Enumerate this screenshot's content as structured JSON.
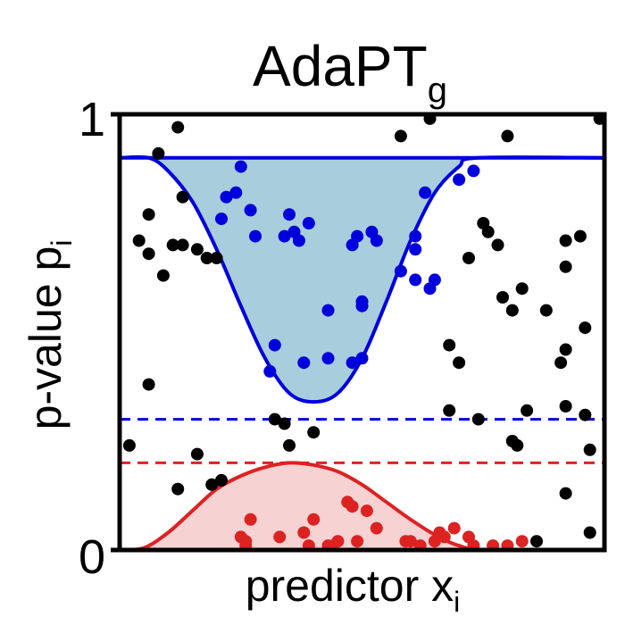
{
  "chart_data": {
    "type": "scatter",
    "title": "AdaPT",
    "title_subscript": "g",
    "xlabel": "predictor x",
    "xlabel_subscript": "i",
    "ylabel": "p-value p",
    "ylabel_subscript": "i",
    "y_ticks": [
      "0",
      "1"
    ],
    "xlim": [
      0,
      1
    ],
    "ylim": [
      0,
      1
    ],
    "grid": false,
    "colors": {
      "null_region_line": "#0000dd",
      "null_region_fill": "#a8cddc",
      "rejection_region_line": "#dd2222",
      "rejection_region_fill": "#f6d2d2",
      "points_other": "#000000"
    },
    "upper_threshold": 0.9,
    "blue_dashed_threshold": 0.3,
    "red_dashed_threshold": 0.2,
    "null_region_curve": [
      [
        0.0,
        0.9
      ],
      [
        0.06,
        0.9
      ],
      [
        0.1,
        0.87
      ],
      [
        0.15,
        0.8
      ],
      [
        0.2,
        0.69
      ],
      [
        0.25,
        0.56
      ],
      [
        0.3,
        0.44
      ],
      [
        0.35,
        0.36
      ],
      [
        0.4,
        0.34
      ],
      [
        0.45,
        0.36
      ],
      [
        0.5,
        0.44
      ],
      [
        0.55,
        0.57
      ],
      [
        0.6,
        0.71
      ],
      [
        0.65,
        0.82
      ],
      [
        0.7,
        0.88
      ],
      [
        0.74,
        0.9
      ],
      [
        1.0,
        0.9
      ]
    ],
    "rejection_region_curve": [
      [
        0.0,
        0.0
      ],
      [
        0.05,
        0.005
      ],
      [
        0.1,
        0.04
      ],
      [
        0.15,
        0.09
      ],
      [
        0.2,
        0.14
      ],
      [
        0.25,
        0.17
      ],
      [
        0.3,
        0.19
      ],
      [
        0.35,
        0.2
      ],
      [
        0.4,
        0.195
      ],
      [
        0.45,
        0.18
      ],
      [
        0.5,
        0.15
      ],
      [
        0.55,
        0.11
      ],
      [
        0.6,
        0.07
      ],
      [
        0.65,
        0.035
      ],
      [
        0.7,
        0.01
      ],
      [
        0.76,
        0.0
      ],
      [
        1.0,
        0.0
      ]
    ],
    "series": [
      {
        "color": "#0000dd",
        "points": [
          [
            0.25,
            0.88
          ],
          [
            0.24,
            0.82
          ],
          [
            0.22,
            0.81
          ],
          [
            0.21,
            0.76
          ],
          [
            0.27,
            0.78
          ],
          [
            0.35,
            0.77
          ],
          [
            0.36,
            0.73
          ],
          [
            0.39,
            0.75
          ],
          [
            0.37,
            0.71
          ],
          [
            0.28,
            0.72
          ],
          [
            0.34,
            0.72
          ],
          [
            0.49,
            0.72
          ],
          [
            0.52,
            0.73
          ],
          [
            0.48,
            0.7
          ],
          [
            0.53,
            0.71
          ],
          [
            0.61,
            0.72
          ],
          [
            0.61,
            0.69
          ],
          [
            0.58,
            0.64
          ],
          [
            0.61,
            0.62
          ],
          [
            0.65,
            0.62
          ],
          [
            0.64,
            0.6
          ],
          [
            0.7,
            0.85
          ],
          [
            0.73,
            0.87
          ],
          [
            0.63,
            0.82
          ],
          [
            0.32,
            0.47
          ],
          [
            0.43,
            0.55
          ],
          [
            0.5,
            0.56
          ],
          [
            0.5,
            0.57
          ],
          [
            0.43,
            0.44
          ],
          [
            0.48,
            0.43
          ],
          [
            0.5,
            0.44
          ],
          [
            0.31,
            0.41
          ],
          [
            0.38,
            0.43
          ]
        ]
      },
      {
        "color": "#dd2222",
        "points": [
          [
            0.25,
            0.03
          ],
          [
            0.26,
            0.01
          ],
          [
            0.27,
            0.07
          ],
          [
            0.26,
            0.02
          ],
          [
            0.33,
            0.03
          ],
          [
            0.38,
            0.04
          ],
          [
            0.4,
            0.07
          ],
          [
            0.44,
            0.01
          ],
          [
            0.45,
            0.02
          ],
          [
            0.47,
            0.11
          ],
          [
            0.48,
            0.1
          ],
          [
            0.51,
            0.09
          ],
          [
            0.53,
            0.05
          ],
          [
            0.59,
            0.02
          ],
          [
            0.6,
            0.02
          ],
          [
            0.65,
            0.02
          ],
          [
            0.66,
            0.04
          ],
          [
            0.67,
            0.03
          ],
          [
            0.69,
            0.05
          ],
          [
            0.72,
            0.03
          ],
          [
            0.73,
            0.01
          ],
          [
            0.39,
            0.01
          ],
          [
            0.43,
            0.01
          ],
          [
            0.49,
            0.02
          ],
          [
            0.62,
            0.01
          ],
          [
            0.77,
            0.01
          ],
          [
            0.8,
            0.01
          ],
          [
            0.83,
            0.02
          ]
        ]
      },
      {
        "color": "#000000",
        "points": [
          [
            0.12,
            0.97
          ],
          [
            0.08,
            0.91
          ],
          [
            0.13,
            0.81
          ],
          [
            0.06,
            0.77
          ],
          [
            0.04,
            0.71
          ],
          [
            0.09,
            0.63
          ],
          [
            0.11,
            0.7
          ],
          [
            0.13,
            0.7
          ],
          [
            0.16,
            0.69
          ],
          [
            0.18,
            0.67
          ],
          [
            0.2,
            0.67
          ],
          [
            0.06,
            0.68
          ],
          [
            0.06,
            0.38
          ],
          [
            0.02,
            0.24
          ],
          [
            0.12,
            0.14
          ],
          [
            0.16,
            0.22
          ],
          [
            0.19,
            0.15
          ],
          [
            0.21,
            0.16
          ],
          [
            0.32,
            0.3
          ],
          [
            0.34,
            0.29
          ],
          [
            0.35,
            0.24
          ],
          [
            0.4,
            0.27
          ],
          [
            0.58,
            0.95
          ],
          [
            0.64,
            0.99
          ],
          [
            0.8,
            0.95
          ],
          [
            0.99,
            0.99
          ],
          [
            0.72,
            0.67
          ],
          [
            0.75,
            0.75
          ],
          [
            0.76,
            0.73
          ],
          [
            0.78,
            0.7
          ],
          [
            0.79,
            0.58
          ],
          [
            0.81,
            0.55
          ],
          [
            0.83,
            0.6
          ],
          [
            0.88,
            0.55
          ],
          [
            0.92,
            0.65
          ],
          [
            0.92,
            0.71
          ],
          [
            0.95,
            0.72
          ],
          [
            0.96,
            0.51
          ],
          [
            0.92,
            0.46
          ],
          [
            0.91,
            0.43
          ],
          [
            0.68,
            0.47
          ],
          [
            0.7,
            0.43
          ],
          [
            0.68,
            0.32
          ],
          [
            0.74,
            0.3
          ],
          [
            0.82,
            0.24
          ],
          [
            0.84,
            0.32
          ],
          [
            0.92,
            0.33
          ],
          [
            0.97,
            0.23
          ],
          [
            0.81,
            0.25
          ],
          [
            0.92,
            0.13
          ],
          [
            0.97,
            0.04
          ],
          [
            0.86,
            0.02
          ],
          [
            0.96,
            0.31
          ]
        ]
      }
    ]
  }
}
